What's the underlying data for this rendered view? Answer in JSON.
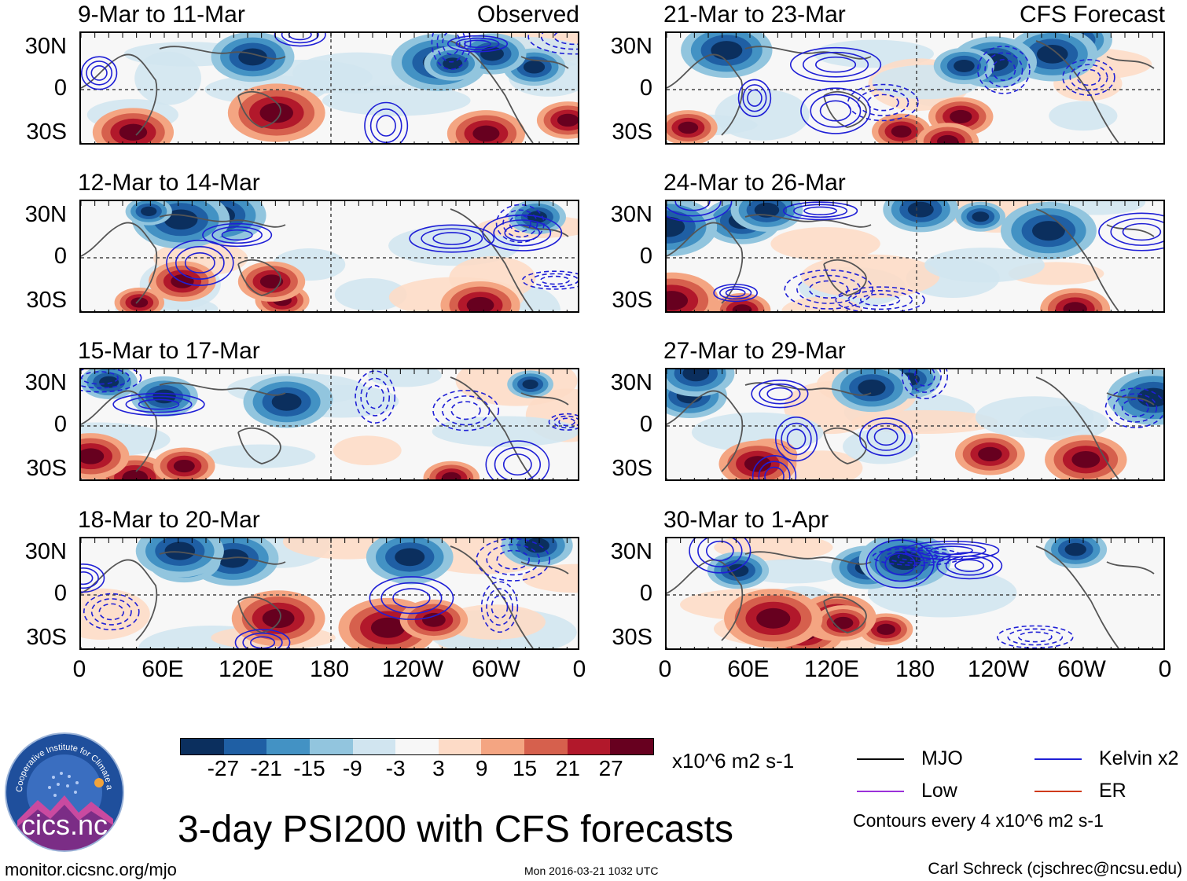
{
  "figure_title": "3-day PSI200 with CFS forecasts",
  "panels": [
    {
      "title": "9-Mar to 11-Mar",
      "label": "Observed"
    },
    {
      "title": "21-Mar to 23-Mar",
      "label": "CFS Forecast"
    },
    {
      "title": "12-Mar to 14-Mar",
      "label": ""
    },
    {
      "title": "24-Mar to 26-Mar",
      "label": ""
    },
    {
      "title": "15-Mar to 17-Mar",
      "label": ""
    },
    {
      "title": "27-Mar to 29-Mar",
      "label": ""
    },
    {
      "title": "18-Mar to 20-Mar",
      "label": ""
    },
    {
      "title": "30-Mar to 1-Apr",
      "label": ""
    }
  ],
  "lat_labels": [
    "30N",
    "0",
    "30S"
  ],
  "lon_labels": [
    "0",
    "60E",
    "120E",
    "180",
    "120W",
    "60W",
    "0"
  ],
  "colorbar": {
    "colors": [
      "#0b2f5e",
      "#1f5fa4",
      "#4392c4",
      "#92c5de",
      "#d1e5f0",
      "#f7f7f7",
      "#fddbc7",
      "#f4a582",
      "#d6604d",
      "#b2182b",
      "#67001f"
    ],
    "ticks": [
      "-27",
      "-21",
      "-15",
      "-9",
      "-3",
      "3",
      "9",
      "15",
      "21",
      "27"
    ],
    "units": "x10^6 m2 s-1"
  },
  "legend": {
    "items": [
      {
        "label": "MJO",
        "color": "#000000"
      },
      {
        "label": "Kelvin x2",
        "color": "#1f1fd6"
      },
      {
        "label": "Low",
        "color": "#9b30d9"
      },
      {
        "label": "ER",
        "color": "#d03a1a"
      }
    ],
    "contour_note": "Contours every 4 x10^6 m2 s-1"
  },
  "logo_text": "cics.nc",
  "logo_ring_text": "Cooperative Institute for Climate and Satellites",
  "footer": {
    "left": "monitor.cicsnc.org/mjo",
    "center": "Mon 2016-03-21 1032 UTC",
    "right": "Carl Schreck (cjschrec@ncsu.edu)"
  }
}
